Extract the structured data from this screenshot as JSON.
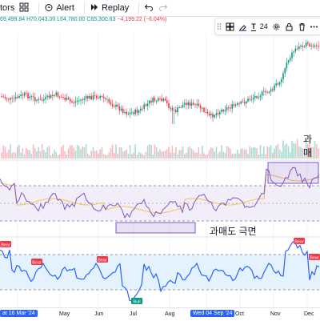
{
  "toolbar": {
    "indicators_label": "tors",
    "alert_label": "Alert",
    "replay_label": "Replay"
  },
  "ohlc": {
    "open": "69,499.84",
    "high": "H70,043.00",
    "low": "L64,780.00",
    "close": "C65,300.63",
    "change": "−4,199.22 (−6.04%)"
  },
  "drawing_toolbar": {
    "text_tool": "T",
    "font_size": "24"
  },
  "annotations": {
    "overbought_text": "과매",
    "oversold_text": "과매도 극면"
  },
  "badges": {
    "bear": "Bear",
    "bull": "Bull"
  },
  "time_axis": {
    "labels": [
      "Mar",
      "May",
      "Jun",
      "Jul",
      "Aug",
      "Oct",
      "Nov",
      "Dec"
    ],
    "start_highlight": "at 16 Mar '24",
    "crosshair_date": "Wed 04 Sep '24"
  },
  "colors": {
    "up": "#089981",
    "down": "#f23645",
    "rsi_line": "#7e57c2",
    "rsi_band": "#ede7f6",
    "osc_line": "#2962ff",
    "osc_band": "#e3f2fd",
    "annotation_box": "#7e57c2"
  }
}
